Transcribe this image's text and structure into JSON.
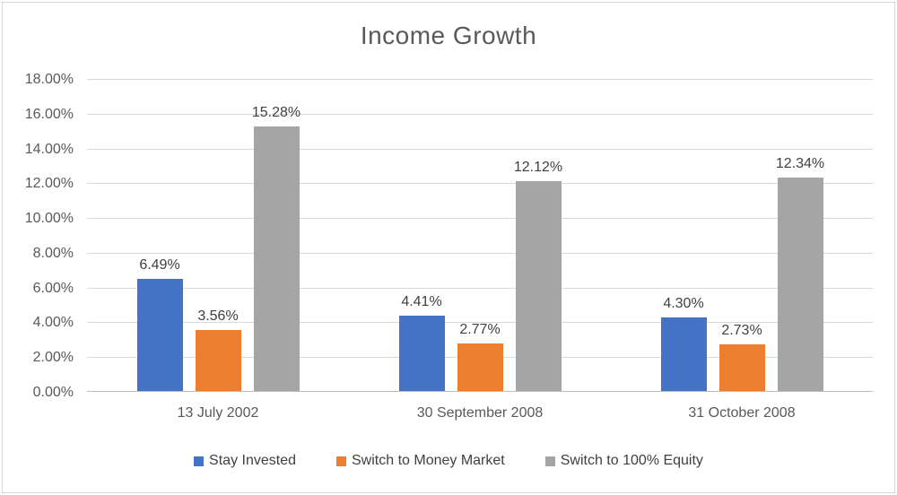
{
  "chart_data": {
    "type": "bar",
    "title": "Income Growth",
    "categories": [
      "13 July 2002",
      "30 September 2008",
      "31 October 2008"
    ],
    "series": [
      {
        "name": "Stay Invested",
        "color": "#4472C4",
        "values": [
          6.49,
          4.41,
          4.3
        ],
        "labels": [
          "6.49%",
          "4.41%",
          "4.30%"
        ]
      },
      {
        "name": "Switch to Money Market",
        "color": "#ED7D31",
        "values": [
          3.56,
          2.77,
          2.73
        ],
        "labels": [
          "3.56%",
          "2.77%",
          "2.73%"
        ]
      },
      {
        "name": "Switch to 100% Equity",
        "color": "#A5A5A5",
        "values": [
          15.28,
          12.12,
          12.34
        ],
        "labels": [
          "15.28%",
          "12.12%",
          "12.34%"
        ]
      }
    ],
    "ylim": [
      0,
      18
    ],
    "ytick_step": 2,
    "ytick_labels": [
      "0.00%",
      "2.00%",
      "4.00%",
      "6.00%",
      "8.00%",
      "10.00%",
      "12.00%",
      "14.00%",
      "16.00%",
      "18.00%"
    ],
    "xlabel": "",
    "ylabel": "",
    "grid": true,
    "legend_position": "bottom"
  }
}
